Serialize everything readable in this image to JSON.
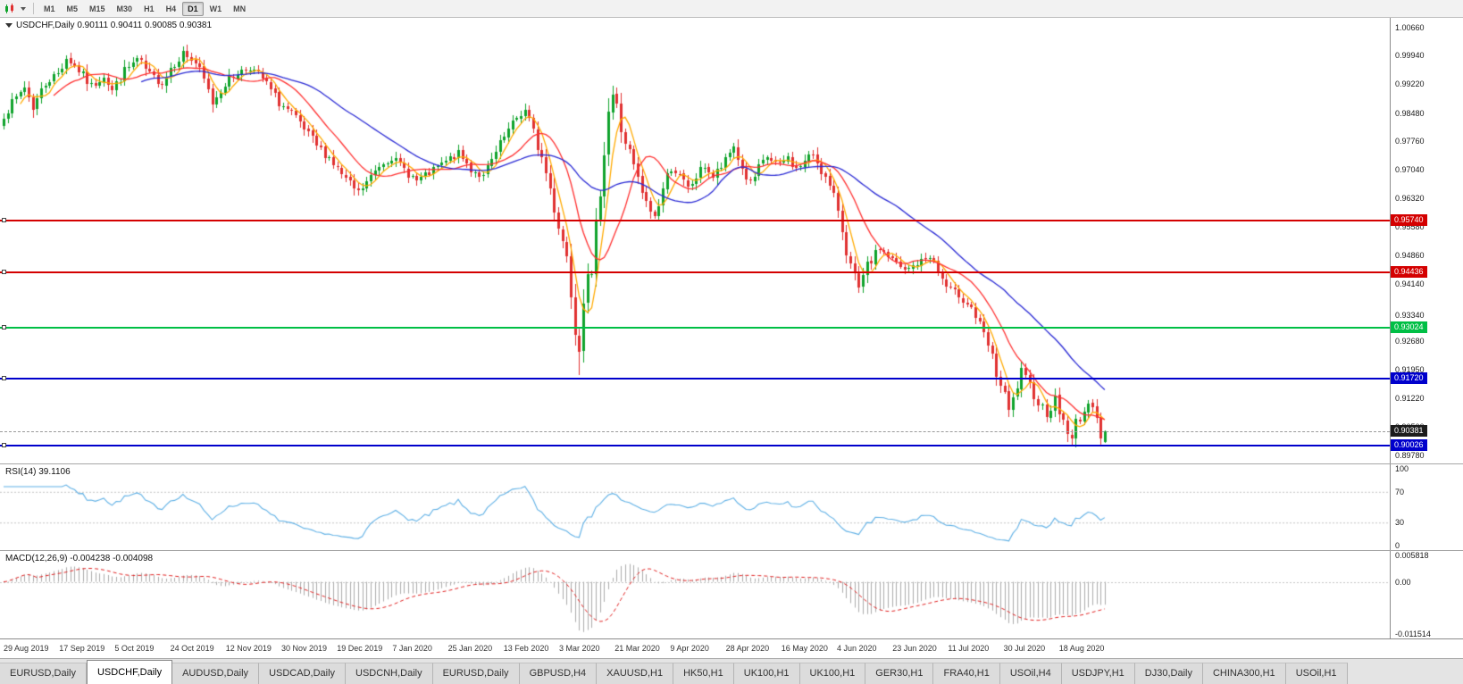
{
  "toolbar": {
    "timeframes": [
      "M1",
      "M5",
      "M15",
      "M30",
      "H1",
      "H4",
      "D1",
      "W1",
      "MN"
    ],
    "active_timeframe": "D1"
  },
  "price_pane": {
    "symbol_title": "USDCHF,Daily",
    "header_text": "USDCHF,Daily 0.90111 0.90411 0.90085 0.90381",
    "view_high": 1.009,
    "view_low": 0.8955,
    "axis_labels": [
      "1.00660",
      "0.99940",
      "0.99220",
      "0.98480",
      "0.97760",
      "0.97040",
      "0.96320",
      "0.95580",
      "0.94860",
      "0.94140",
      "0.93340",
      "0.92680",
      "0.91950",
      "0.91220",
      "0.90500",
      "0.89780"
    ],
    "levels": [
      {
        "price": 0.9574,
        "label": "0.95740",
        "color": "#d40000"
      },
      {
        "price": 0.94436,
        "label": "0.94436",
        "color": "#d40000"
      },
      {
        "price": 0.93024,
        "label": "0.93024",
        "color": "#00bf45"
      },
      {
        "price": 0.9172,
        "label": "0.91720",
        "color": "#0000cc"
      },
      {
        "price": 0.90026,
        "label": "0.90026",
        "color": "#0000cc"
      }
    ],
    "current_price": {
      "price": 0.90381,
      "label": "0.90381",
      "color": "#1c1c1c"
    }
  },
  "rsi_pane": {
    "title": "RSI(14) 39.1106",
    "period": 14,
    "axis_labels": [
      "100",
      "70",
      "30",
      "0"
    ],
    "overbought": 70,
    "oversold": 30,
    "line_color": "#5fb0e5"
  },
  "macd_pane": {
    "title": "MACD(12,26,9) -0.004238 -0.004098",
    "fast": 12,
    "slow": 26,
    "signal": 9,
    "axis_labels": [
      "0.005818",
      "0.00",
      "-0.011514"
    ],
    "view_high": 0.005818,
    "view_low": -0.011514,
    "hist_color": "#ababab",
    "signal_color": "#e02020"
  },
  "time_axis": {
    "dates": [
      "29 Aug 2019",
      "17 Sep 2019",
      "5 Oct 2019",
      "24 Oct 2019",
      "12 Nov 2019",
      "30 Nov 2019",
      "19 Dec 2019",
      "7 Jan 2020",
      "25 Jan 2020",
      "13 Feb 2020",
      "3 Mar 2020",
      "21 Mar 2020",
      "9 Apr 2020",
      "28 Apr 2020",
      "16 May 2020",
      "4 Jun 2020",
      "23 Jun 2020",
      "11 Jul 2020",
      "30 Jul 2020",
      "18 Aug 2020"
    ]
  },
  "tabs": {
    "active_index": 1,
    "items": [
      {
        "label": "EURUSD,Daily"
      },
      {
        "label": "USDCHF,Daily"
      },
      {
        "label": "AUDUSD,Daily"
      },
      {
        "label": "USDCAD,Daily"
      },
      {
        "label": "USDCNH,Daily"
      },
      {
        "label": "EURUSD,Daily"
      },
      {
        "label": "GBPUSD,H4"
      },
      {
        "label": "XAUUSD,H1"
      },
      {
        "label": "HK50,H1"
      },
      {
        "label": "UK100,H1"
      },
      {
        "label": "UK100,H1"
      },
      {
        "label": "GER30,H1"
      },
      {
        "label": "FRA40,H1"
      },
      {
        "label": "USOil,H4"
      },
      {
        "label": "USDJPY,H1"
      },
      {
        "label": "DJ30,Daily"
      },
      {
        "label": "CHINA300,H1"
      },
      {
        "label": "USOil,H1"
      }
    ]
  },
  "chart_data": {
    "type": "candlestick",
    "symbol": "USDCHF",
    "timeframe": "Daily",
    "last_ohlc": {
      "open": 0.90111,
      "high": 0.90411,
      "low": 0.90085,
      "close": 0.90381
    },
    "bars": 265,
    "seed": 7,
    "up_color": "#0fa32b",
    "down_color": "#e03131",
    "ma": [
      {
        "period": 5,
        "color": "#ffaa00"
      },
      {
        "period": 13,
        "color": "#ff3030"
      },
      {
        "period": 34,
        "color": "#2a2ad4"
      }
    ],
    "anchors": [
      [
        0,
        0.9845
      ],
      [
        3,
        0.9885
      ],
      [
        5,
        0.9915
      ],
      [
        7,
        0.9865
      ],
      [
        10,
        0.9925
      ],
      [
        13,
        0.995
      ],
      [
        15,
        0.999
      ],
      [
        18,
        0.9955
      ],
      [
        21,
        0.9915
      ],
      [
        24,
        0.9945
      ],
      [
        26,
        0.9905
      ],
      [
        29,
        0.9955
      ],
      [
        32,
        0.9985
      ],
      [
        35,
        0.9945
      ],
      [
        38,
        0.9925
      ],
      [
        40,
        0.9965
      ],
      [
        43,
        1.0
      ],
      [
        46,
        0.9975
      ],
      [
        48,
        0.993
      ],
      [
        50,
        0.9875
      ],
      [
        53,
        0.9925
      ],
      [
        56,
        0.995
      ],
      [
        59,
        0.9965
      ],
      [
        62,
        0.9935
      ],
      [
        64,
        0.9905
      ],
      [
        66,
        0.9875
      ],
      [
        69,
        0.9845
      ],
      [
        72,
        0.9805
      ],
      [
        75,
        0.9765
      ],
      [
        78,
        0.9735
      ],
      [
        80,
        0.9705
      ],
      [
        83,
        0.9665
      ],
      [
        85,
        0.9645
      ],
      [
        88,
        0.9685
      ],
      [
        90,
        0.9715
      ],
      [
        93,
        0.9735
      ],
      [
        96,
        0.9705
      ],
      [
        99,
        0.9675
      ],
      [
        102,
        0.9695
      ],
      [
        106,
        0.9725
      ],
      [
        109,
        0.9745
      ],
      [
        112,
        0.9705
      ],
      [
        115,
        0.9685
      ],
      [
        118,
        0.9745
      ],
      [
        120,
        0.9785
      ],
      [
        123,
        0.9835
      ],
      [
        125,
        0.9855
      ],
      [
        127,
        0.9795
      ],
      [
        129,
        0.9735
      ],
      [
        131,
        0.9655
      ],
      [
        133,
        0.9565
      ],
      [
        135,
        0.9485
      ],
      [
        137,
        0.9305
      ],
      [
        138,
        0.9255
      ],
      [
        139,
        0.9385
      ],
      [
        140,
        0.9455
      ],
      [
        141,
        0.9425
      ],
      [
        142,
        0.9555
      ],
      [
        143,
        0.9655
      ],
      [
        144,
        0.9755
      ],
      [
        145,
        0.9855
      ],
      [
        146,
        0.9895
      ],
      [
        147,
        0.9865
      ],
      [
        148,
        0.9805
      ],
      [
        150,
        0.9745
      ],
      [
        152,
        0.9675
      ],
      [
        154,
        0.9615
      ],
      [
        156,
        0.9585
      ],
      [
        158,
        0.9655
      ],
      [
        160,
        0.9715
      ],
      [
        162,
        0.9685
      ],
      [
        164,
        0.9655
      ],
      [
        166,
        0.9685
      ],
      [
        168,
        0.9715
      ],
      [
        170,
        0.9685
      ],
      [
        173,
        0.9725
      ],
      [
        175,
        0.9765
      ],
      [
        177,
        0.9705
      ],
      [
        179,
        0.9665
      ],
      [
        181,
        0.9705
      ],
      [
        183,
        0.9735
      ],
      [
        186,
        0.9715
      ],
      [
        188,
        0.9735
      ],
      [
        190,
        0.9705
      ],
      [
        192,
        0.9725
      ],
      [
        194,
        0.9745
      ],
      [
        196,
        0.9705
      ],
      [
        198,
        0.9655
      ],
      [
        200,
        0.9605
      ],
      [
        201,
        0.9555
      ],
      [
        203,
        0.9455
      ],
      [
        205,
        0.9395
      ],
      [
        207,
        0.9455
      ],
      [
        210,
        0.9505
      ],
      [
        213,
        0.9475
      ],
      [
        216,
        0.9445
      ],
      [
        219,
        0.9465
      ],
      [
        222,
        0.9485
      ],
      [
        224,
        0.9445
      ],
      [
        226,
        0.9405
      ],
      [
        229,
        0.9385
      ],
      [
        232,
        0.9355
      ],
      [
        234,
        0.9305
      ],
      [
        236,
        0.9255
      ],
      [
        238,
        0.9185
      ],
      [
        240,
        0.9125
      ],
      [
        241,
        0.9085
      ],
      [
        242,
        0.9115
      ],
      [
        243,
        0.9155
      ],
      [
        244,
        0.9185
      ],
      [
        246,
        0.9155
      ],
      [
        248,
        0.9115
      ],
      [
        250,
        0.9085
      ],
      [
        252,
        0.912
      ],
      [
        253,
        0.909
      ],
      [
        255,
        0.904
      ],
      [
        256,
        0.901
      ],
      [
        257,
        0.906
      ],
      [
        259,
        0.909
      ],
      [
        261,
        0.911
      ],
      [
        262,
        0.9085
      ],
      [
        263,
        0.9025
      ],
      [
        264,
        0.90381
      ]
    ],
    "overrides": {
      "43": {
        "high": 1.0018
      },
      "138": {
        "low": 0.9183
      },
      "146": {
        "high": 0.9918
      },
      "256": {
        "low": 0.9003
      },
      "263": {
        "low": 0.9004
      },
      "264": {
        "open": 0.90111,
        "high": 0.90411,
        "low": 0.90085,
        "close": 0.90381
      }
    }
  }
}
